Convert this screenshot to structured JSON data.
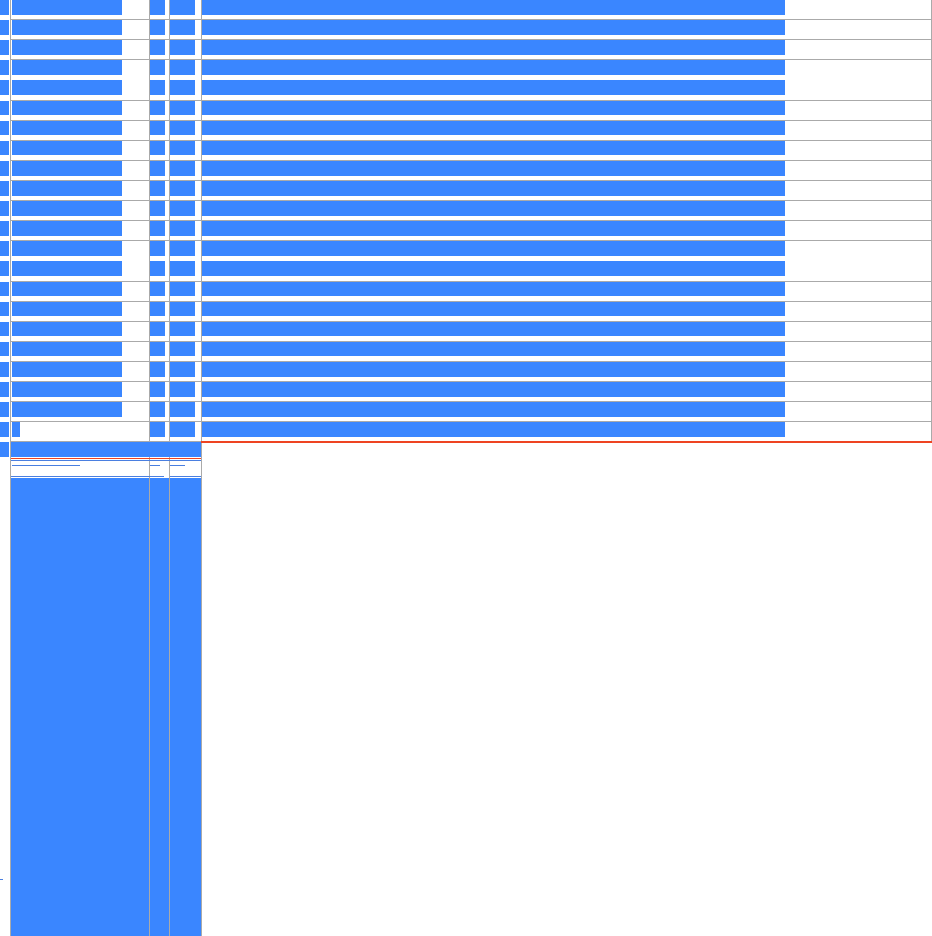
{
  "colors": {
    "bar": "#3a86ff",
    "grid": "#aaaaaa",
    "accent_line": "#ee4422",
    "thin_line": "#4a7fe0"
  },
  "table": {
    "full_rows": 21,
    "partial_rows": 1
  }
}
